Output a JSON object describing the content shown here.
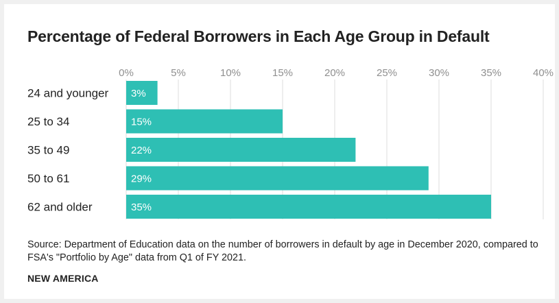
{
  "chart_data": {
    "type": "bar",
    "orientation": "horizontal",
    "title": "Percentage of Federal Borrowers in Each Age Group in Default",
    "categories": [
      "24 and younger",
      "25 to 34",
      "35 to 49",
      "50 to 61",
      "62 and older"
    ],
    "values": [
      3,
      15,
      22,
      29,
      35
    ],
    "value_labels": [
      "3%",
      "15%",
      "22%",
      "29%",
      "35%"
    ],
    "xlim": [
      0,
      40
    ],
    "x_ticks": [
      0,
      5,
      10,
      15,
      20,
      25,
      30,
      35,
      40
    ],
    "x_tick_labels": [
      "0%",
      "5%",
      "10%",
      "15%",
      "20%",
      "25%",
      "30%",
      "35%",
      "40%"
    ],
    "x_axis_position": "top",
    "grid": true,
    "bar_color": "#2ebfb4",
    "grid_color": "#dddddd"
  },
  "source_text": "Source: Department of Education data on the number of borrowers in default by age in December 2020, compared to FSA's \"Portfolio by Age\" data from Q1 of FY 2021.",
  "brand": "NEW AMERICA"
}
